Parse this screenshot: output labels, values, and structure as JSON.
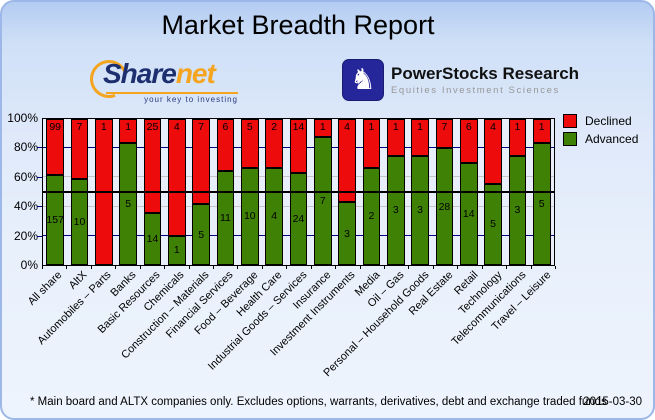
{
  "header": {
    "title": "Market Breadth Report"
  },
  "logos": {
    "sharenet": {
      "part1": "Share",
      "part2": "net",
      "tagline": "your key to investing",
      "color_primary": "#1d2f6f",
      "color_accent": "#f4a41f"
    },
    "powerstocks": {
      "name": "PowerStocks  Research",
      "tagline": "Equities Investment Sciences",
      "icon": "chess-knight-icon",
      "glyph": "♞",
      "box_color": "#26269b"
    }
  },
  "legend": {
    "items": [
      {
        "label": "Declined",
        "color": "#ee0b0b"
      },
      {
        "label": "Advanced",
        "color": "#3f8104"
      }
    ]
  },
  "footer": {
    "note": "* Main board and ALTX companies only. Excludes options, warrants, derivatives, debt and exchange traded funds",
    "date": "2015-03-30"
  },
  "chart_data": {
    "type": "bar",
    "variant": "stacked-100-percent",
    "title": "Market Breadth Report",
    "categories": [
      "All share",
      "AltX",
      "Automobiles – Parts",
      "Banks",
      "Basic Resources",
      "Chemicals",
      "Construction – Materials",
      "Financial Services",
      "Food – Beverage",
      "Health Care",
      "Industrial Goods – Services",
      "Insurance",
      "Investment Instruments",
      "Media",
      "Oil – Gas",
      "Personal – Household Goods",
      "Real Estate",
      "Retail",
      "Technology",
      "Telecommunications",
      "Travel – Leisure"
    ],
    "series": [
      {
        "name": "Declined",
        "color": "#ee0b0b",
        "values": [
          99,
          7,
          1,
          1,
          25,
          4,
          7,
          6,
          5,
          2,
          14,
          1,
          4,
          1,
          1,
          1,
          7,
          6,
          4,
          1,
          1
        ]
      },
      {
        "name": "Advanced",
        "color": "#3f8104",
        "values": [
          157,
          10,
          0,
          5,
          14,
          1,
          5,
          11,
          10,
          4,
          24,
          7,
          3,
          2,
          3,
          3,
          28,
          14,
          5,
          3,
          5
        ]
      }
    ],
    "advanced_pct": [
      61.3,
      58.8,
      0,
      83.3,
      35.9,
      20,
      41.7,
      64.7,
      66.7,
      66.7,
      63.2,
      87.5,
      42.9,
      66.7,
      75,
      75,
      80,
      70,
      55.6,
      75,
      83.3
    ],
    "y_ticks": [
      "0%",
      "20%",
      "40%",
      "60%",
      "80%",
      "100%"
    ],
    "ylim": [
      0,
      100
    ],
    "bar_labels": "counts (declined at bar top, advanced at middle of green segment)",
    "gridlines": [
      {
        "pct": 20,
        "color": "#000080"
      },
      {
        "pct": 40,
        "color": "#c6c6c6"
      },
      {
        "pct": 50,
        "color": "#000000",
        "emphasis": true
      },
      {
        "pct": 60,
        "color": "#c6c6c6"
      },
      {
        "pct": 80,
        "color": "#000080"
      }
    ],
    "legend_position": "top-right"
  }
}
